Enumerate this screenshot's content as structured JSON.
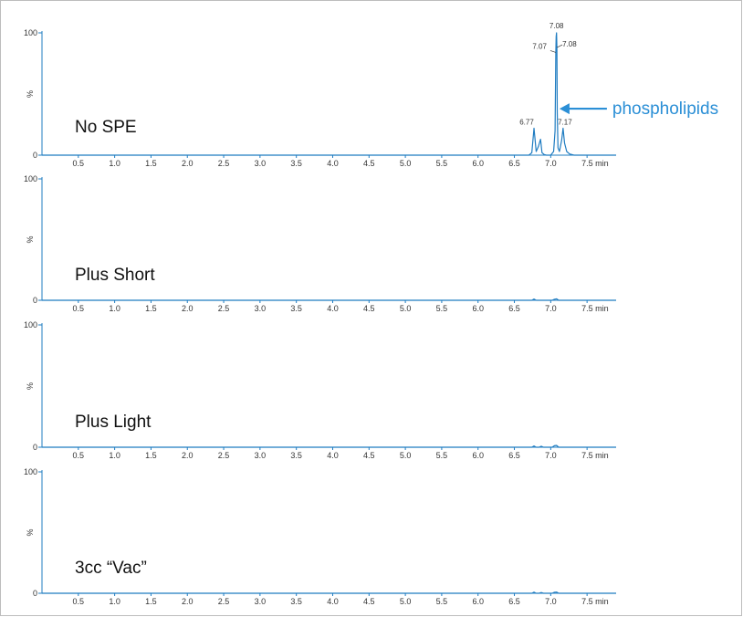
{
  "colors": {
    "trace": "#1f7cc1",
    "axis": "#1f7cc1",
    "annotation": "#2b8fd6",
    "text": "#333333"
  },
  "chart_data": {
    "type": "line",
    "x_unit": "min",
    "xlim": [
      0,
      7.9
    ],
    "ylim": [
      0,
      100
    ],
    "x_ticks": [
      0.5,
      1.0,
      1.5,
      2.0,
      2.5,
      3.0,
      3.5,
      4.0,
      4.5,
      5.0,
      5.5,
      6.0,
      6.5,
      7.0,
      7.5
    ],
    "x_tick_labels": [
      "0.5",
      "1.0",
      "1.5",
      "2.0",
      "2.5",
      "3.0",
      "3.5",
      "4.0",
      "4.5",
      "5.0",
      "5.5",
      "6.0",
      "6.5",
      "7.0",
      "7.5 min"
    ],
    "y_ticks": [
      0,
      100
    ],
    "y_tick_labels": [
      "0",
      "100"
    ],
    "ylabel": "%",
    "panels": [
      {
        "label": "No SPE",
        "x": [
          0,
          6.7,
          6.74,
          6.77,
          6.8,
          6.83,
          6.86,
          6.88,
          6.91,
          6.94,
          7.0,
          7.04,
          7.06,
          7.07,
          7.075,
          7.08,
          7.085,
          7.09,
          7.1,
          7.12,
          7.15,
          7.17,
          7.19,
          7.22,
          7.26,
          7.32,
          7.9
        ],
        "y": [
          0,
          0,
          2,
          22,
          3,
          7,
          13,
          2,
          0.5,
          0,
          0,
          3,
          20,
          84,
          97,
          100,
          88,
          35,
          6,
          3,
          12,
          22,
          10,
          3,
          1,
          0,
          0
        ],
        "peak_labels": [
          {
            "text": "6.77",
            "x": 6.77,
            "y": 22
          },
          {
            "text": "7.07",
            "x": 7.07,
            "y": 84
          },
          {
            "text": "7.08",
            "x": 7.08,
            "y": 100
          },
          {
            "text": "7.08",
            "x": 7.085,
            "y": 88
          },
          {
            "text": "7.17",
            "x": 7.17,
            "y": 22
          }
        ],
        "annotation": {
          "text": "phospholipids",
          "x": 7.12,
          "y": 38
        }
      },
      {
        "label": "Plus Short",
        "x": [
          0,
          6.74,
          6.77,
          6.8,
          7.02,
          7.05,
          7.08,
          7.11,
          7.9
        ],
        "y": [
          0,
          0,
          1,
          0,
          0,
          0.8,
          1.2,
          0,
          0
        ]
      },
      {
        "label": "Plus Light",
        "x": [
          0,
          6.74,
          6.77,
          6.8,
          6.84,
          6.87,
          6.9,
          7.02,
          7.05,
          7.08,
          7.11,
          7.9
        ],
        "y": [
          0,
          0,
          1,
          0,
          0,
          0.8,
          0,
          0,
          1.2,
          1.5,
          0,
          0
        ]
      },
      {
        "label": "3cc “Vac”",
        "x": [
          0,
          6.74,
          6.77,
          6.8,
          6.84,
          6.87,
          6.9,
          7.02,
          7.05,
          7.08,
          7.11,
          7.9
        ],
        "y": [
          0,
          0,
          0.9,
          0,
          0,
          0.6,
          0,
          0,
          0.8,
          1.0,
          0,
          0
        ]
      }
    ]
  }
}
